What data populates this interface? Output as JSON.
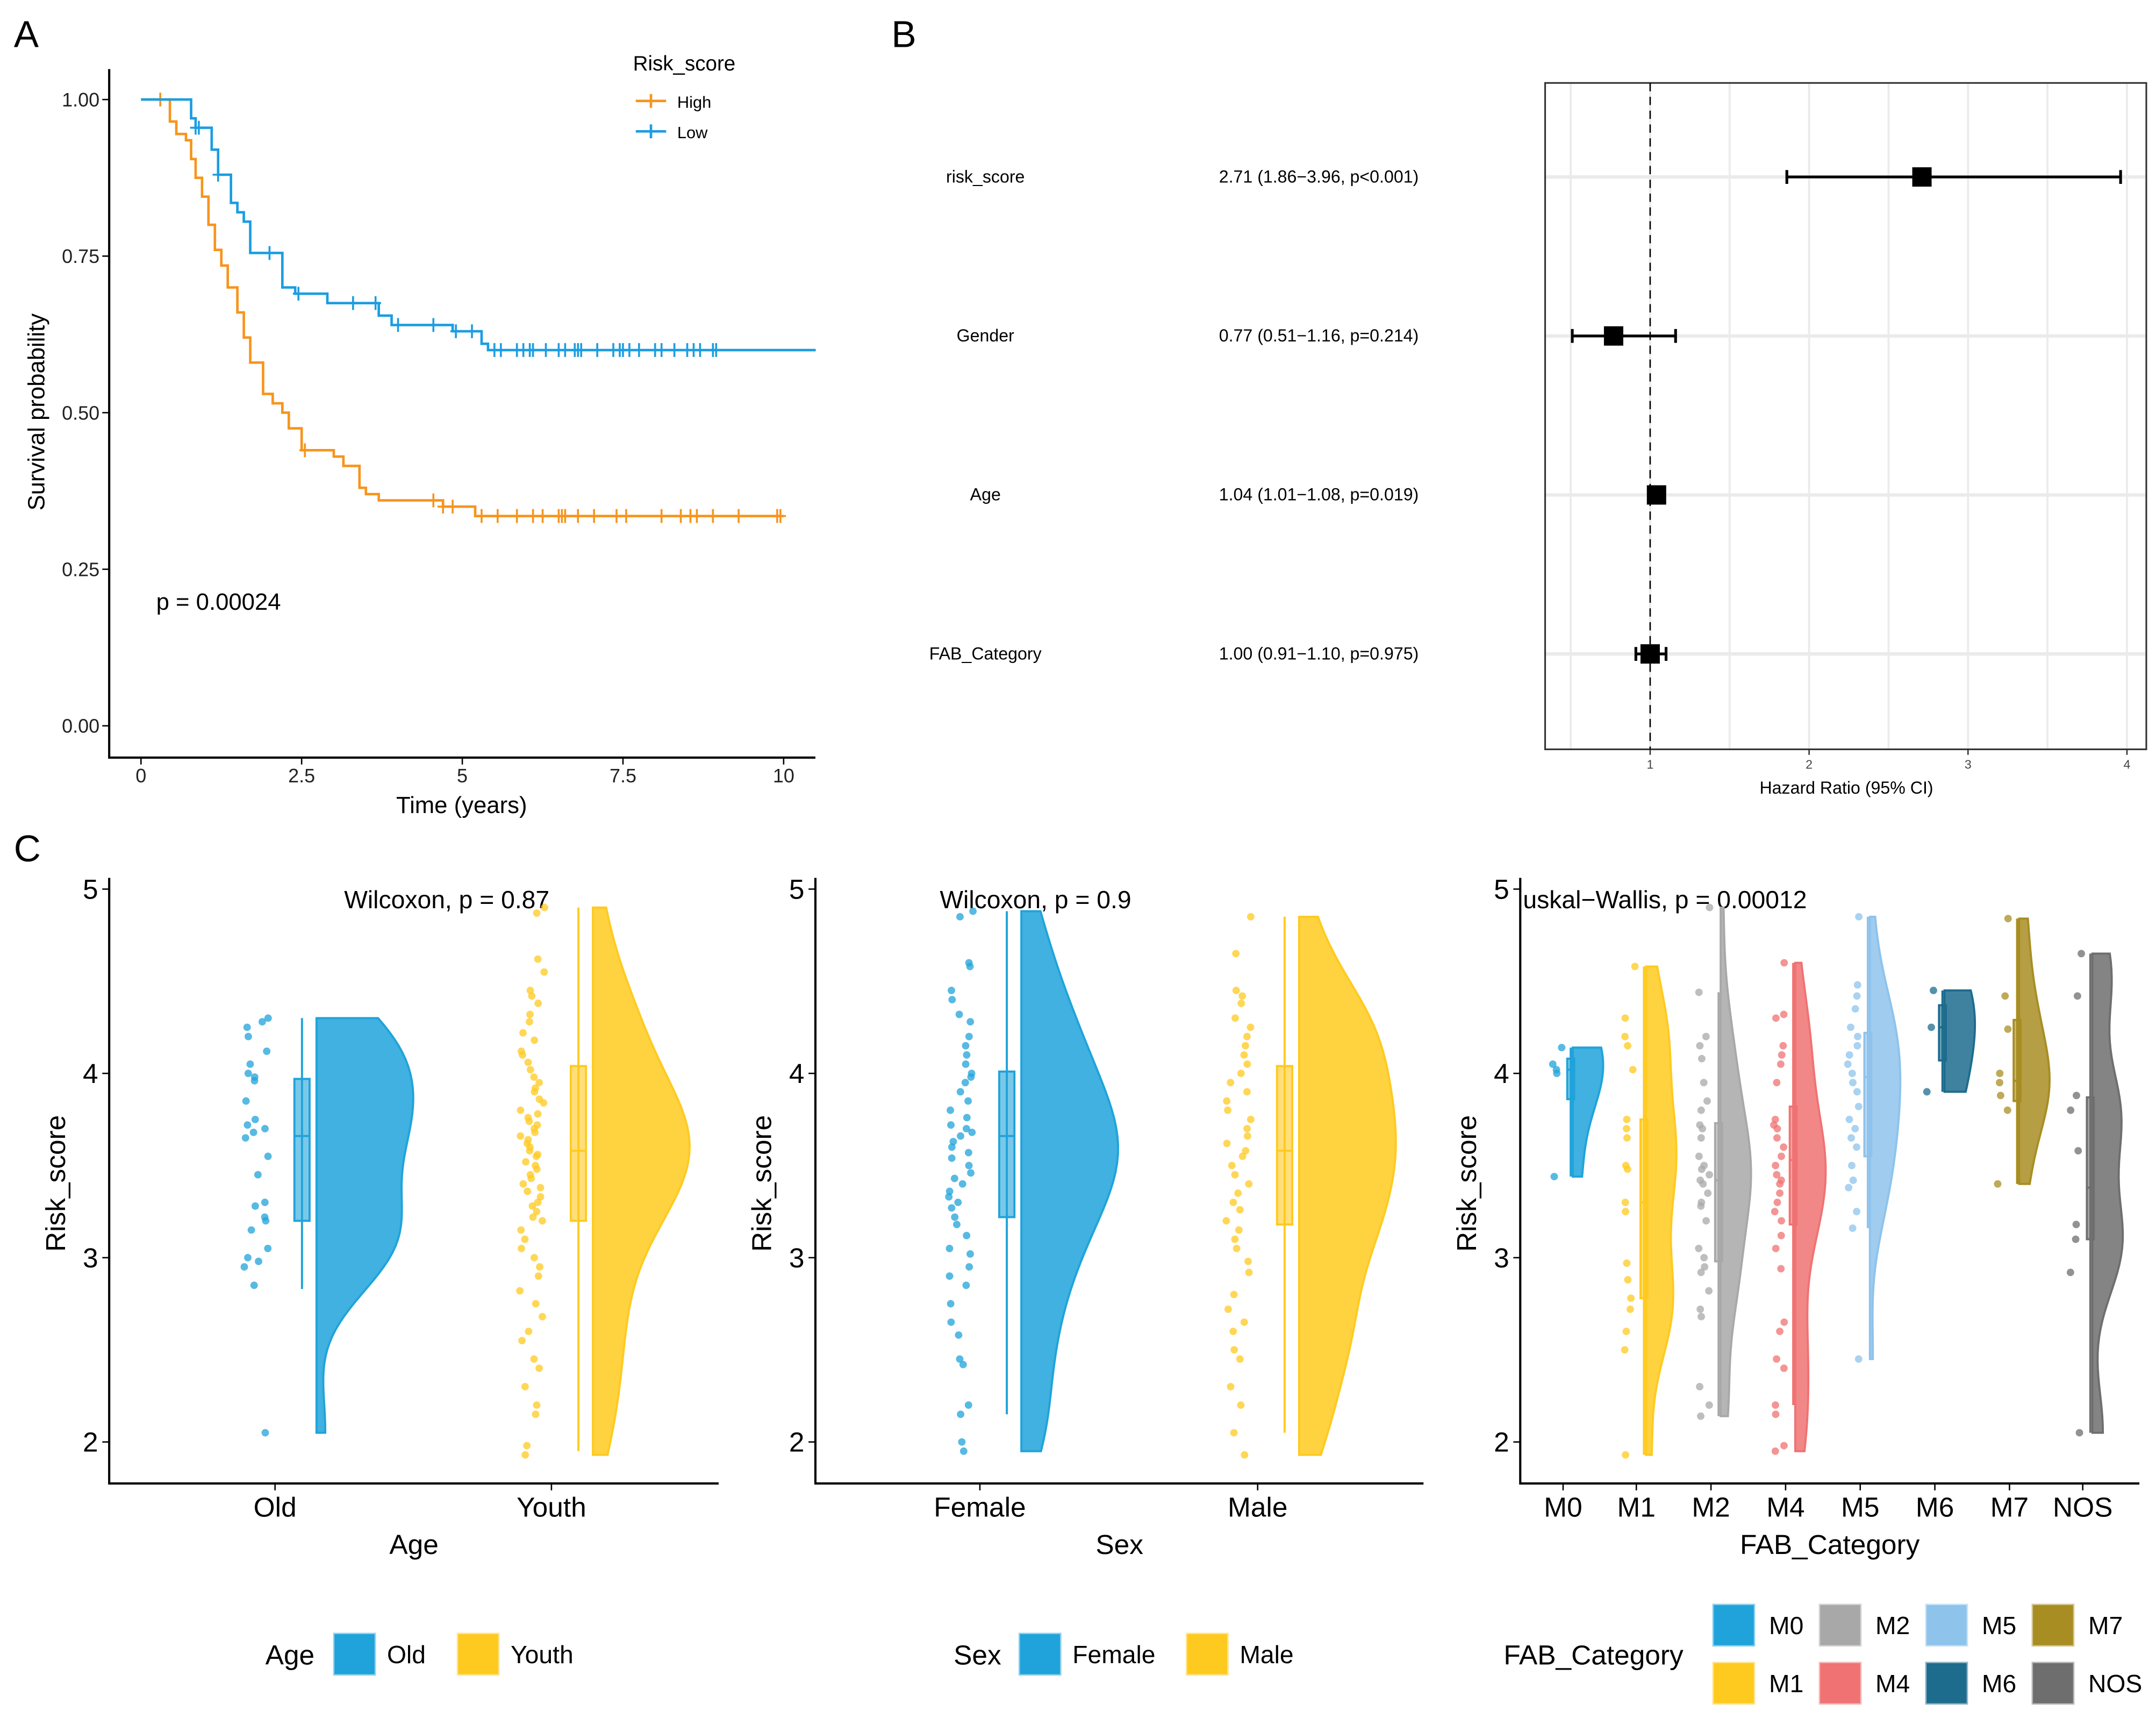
{
  "panel_labels": [
    "A",
    "B",
    "C"
  ],
  "chart_data": [
    {
      "type": "line",
      "subtype": "kaplan-meier",
      "xlabel": "Time (years)",
      "ylabel": "Survival probability",
      "xticks": [
        "0",
        "2.5",
        "5",
        "7.5",
        "10"
      ],
      "yticks": [
        "0.00",
        "0.25",
        "0.50",
        "0.75",
        "1.00"
      ],
      "xlim": [
        -0.5,
        10.5
      ],
      "ylim": [
        -0.05,
        1.05
      ],
      "annotation": "p = 0.00024",
      "legend": {
        "title": "Risk_score",
        "position": "top-right"
      },
      "series": [
        {
          "name": "High",
          "color": "#F7941D",
          "steps": [
            [
              0,
              1.0
            ],
            [
              0.45,
              0.965
            ],
            [
              0.55,
              0.945
            ],
            [
              0.7,
              0.935
            ],
            [
              0.78,
              0.905
            ],
            [
              0.85,
              0.875
            ],
            [
              0.95,
              0.845
            ],
            [
              1.05,
              0.8
            ],
            [
              1.15,
              0.76
            ],
            [
              1.25,
              0.735
            ],
            [
              1.35,
              0.7
            ],
            [
              1.5,
              0.66
            ],
            [
              1.6,
              0.62
            ],
            [
              1.7,
              0.58
            ],
            [
              1.9,
              0.53
            ],
            [
              2.05,
              0.515
            ],
            [
              2.2,
              0.5
            ],
            [
              2.3,
              0.475
            ],
            [
              2.5,
              0.44
            ],
            [
              3.0,
              0.43
            ],
            [
              3.15,
              0.415
            ],
            [
              3.4,
              0.38
            ],
            [
              3.5,
              0.37
            ],
            [
              3.7,
              0.36
            ],
            [
              4.7,
              0.35
            ],
            [
              5.2,
              0.335
            ]
          ],
          "end": 10.0,
          "censored": [
            0.3,
            2.55,
            4.55,
            4.7,
            4.85,
            5.3,
            5.55,
            5.85,
            6.1,
            6.25,
            6.5,
            6.55,
            6.6,
            6.8,
            7.05,
            7.4,
            7.55,
            8.1,
            8.4,
            8.55,
            8.65,
            8.9,
            9.3,
            9.9,
            9.95
          ]
        },
        {
          "name": "Low",
          "color": "#1B9DE2",
          "steps": [
            [
              0,
              1.0
            ],
            [
              0.78,
              0.97
            ],
            [
              0.85,
              0.955
            ],
            [
              1.1,
              0.92
            ],
            [
              1.2,
              0.88
            ],
            [
              1.4,
              0.835
            ],
            [
              1.5,
              0.82
            ],
            [
              1.6,
              0.805
            ],
            [
              1.7,
              0.755
            ],
            [
              2.2,
              0.7
            ],
            [
              2.4,
              0.69
            ],
            [
              2.9,
              0.675
            ],
            [
              3.7,
              0.655
            ],
            [
              3.9,
              0.64
            ],
            [
              4.85,
              0.63
            ],
            [
              5.3,
              0.61
            ],
            [
              5.4,
              0.6
            ]
          ],
          "end": 10.5,
          "censored": [
            0.85,
            0.9,
            1.2,
            2.0,
            2.45,
            3.3,
            3.65,
            4.0,
            4.55,
            4.9,
            5.15,
            5.5,
            5.6,
            5.85,
            5.95,
            6.05,
            6.1,
            6.3,
            6.5,
            6.6,
            6.75,
            6.8,
            6.85,
            7.1,
            7.35,
            7.45,
            7.5,
            7.6,
            7.75,
            8.0,
            8.1,
            8.3,
            8.5,
            8.6,
            8.7,
            8.9,
            8.95
          ]
        }
      ]
    },
    {
      "type": "forest",
      "xlabel": "Hazard Ratio (95% CI)",
      "xticks": [
        "1",
        "2",
        "3",
        "4"
      ],
      "xlim": [
        0.34,
        4.07
      ],
      "reference_line": 1,
      "rows": [
        {
          "label": "risk_score",
          "text": "2.71 (1.86−3.96, p<0.001)",
          "hr": 2.71,
          "lo": 1.86,
          "hi": 3.96
        },
        {
          "label": "Gender",
          "text": "0.77 (0.51−1.16, p=0.214)",
          "hr": 0.77,
          "lo": 0.51,
          "hi": 1.16
        },
        {
          "label": "Age",
          "text": "1.04 (1.01−1.08, p=0.019)",
          "hr": 1.04,
          "lo": 1.01,
          "hi": 1.08
        },
        {
          "label": "FAB_Category",
          "text": "1.00 (0.91−1.10, p=0.975)",
          "hr": 1.0,
          "lo": 0.91,
          "hi": 1.1
        }
      ]
    },
    {
      "type": "raincloud",
      "xlabel": "Age",
      "ylabel": "Risk_score",
      "yticks": [
        "2",
        "3",
        "4",
        "5"
      ],
      "ylim": [
        1.78,
        5.05
      ],
      "annotation": "Wilcoxon, p = 0.87",
      "legend": {
        "title": "Age",
        "position": "bottom"
      },
      "groups": [
        {
          "name": "Old",
          "color": "#1FA3DA",
          "box": [
            2.83,
            3.2,
            3.66,
            3.97,
            4.3
          ],
          "points": [
            4.3,
            4.28,
            4.25,
            4.2,
            4.12,
            4.05,
            4.0,
            3.98,
            3.96,
            3.85,
            3.75,
            3.72,
            3.7,
            3.68,
            3.65,
            3.55,
            3.45,
            3.3,
            3.28,
            3.22,
            3.2,
            3.15,
            3.05,
            3.0,
            2.98,
            2.95,
            2.85,
            2.05
          ]
        },
        {
          "name": "Youth",
          "color": "#FFCA1F",
          "box": [
            1.95,
            3.2,
            3.58,
            4.04,
            4.9
          ],
          "points": [
            4.9,
            4.87,
            4.62,
            4.55,
            4.45,
            4.42,
            4.38,
            4.32,
            4.28,
            4.22,
            4.18,
            4.12,
            4.1,
            4.06,
            4.02,
            3.98,
            3.95,
            3.92,
            3.9,
            3.86,
            3.84,
            3.8,
            3.78,
            3.76,
            3.74,
            3.72,
            3.7,
            3.68,
            3.66,
            3.64,
            3.62,
            3.6,
            3.58,
            3.56,
            3.55,
            3.52,
            3.5,
            3.48,
            3.45,
            3.43,
            3.4,
            3.38,
            3.36,
            3.33,
            3.3,
            3.28,
            3.25,
            3.22,
            3.2,
            3.15,
            3.1,
            3.05,
            3.0,
            2.95,
            2.9,
            2.82,
            2.75,
            2.68,
            2.6,
            2.55,
            2.45,
            2.4,
            2.3,
            2.2,
            2.15,
            1.98,
            1.93
          ]
        }
      ]
    },
    {
      "type": "raincloud",
      "xlabel": "Sex",
      "ylabel": "Risk_score",
      "yticks": [
        "2",
        "3",
        "4",
        "5"
      ],
      "ylim": [
        1.78,
        5.05
      ],
      "annotation": "Wilcoxon, p = 0.9",
      "legend": {
        "title": "Sex",
        "position": "bottom"
      },
      "groups": [
        {
          "name": "Female",
          "color": "#1FA3DA",
          "box": [
            2.15,
            3.22,
            3.66,
            4.01,
            4.88
          ],
          "points": [
            4.88,
            4.85,
            4.6,
            4.58,
            4.45,
            4.4,
            4.32,
            4.28,
            4.2,
            4.15,
            4.1,
            4.05,
            4.0,
            3.98,
            3.95,
            3.9,
            3.85,
            3.8,
            3.76,
            3.72,
            3.7,
            3.68,
            3.66,
            3.63,
            3.6,
            3.57,
            3.54,
            3.5,
            3.46,
            3.43,
            3.4,
            3.36,
            3.33,
            3.3,
            3.27,
            3.22,
            3.18,
            3.12,
            3.05,
            3.02,
            2.95,
            2.9,
            2.85,
            2.75,
            2.65,
            2.58,
            2.45,
            2.42,
            2.2,
            2.15,
            2.0,
            1.95
          ]
        },
        {
          "name": "Male",
          "color": "#FFCA1F",
          "box": [
            2.05,
            3.18,
            3.58,
            4.04,
            4.85
          ],
          "points": [
            4.85,
            4.65,
            4.45,
            4.42,
            4.38,
            4.3,
            4.25,
            4.2,
            4.15,
            4.1,
            4.05,
            4.0,
            3.95,
            3.9,
            3.85,
            3.8,
            3.75,
            3.7,
            3.66,
            3.62,
            3.58,
            3.55,
            3.5,
            3.45,
            3.4,
            3.35,
            3.3,
            3.26,
            3.2,
            3.15,
            3.1,
            3.05,
            2.98,
            2.92,
            2.8,
            2.72,
            2.65,
            2.6,
            2.5,
            2.45,
            2.3,
            2.2,
            2.05,
            1.93
          ]
        }
      ]
    },
    {
      "type": "raincloud",
      "xlabel": "FAB_Category",
      "ylabel": "Risk_score",
      "yticks": [
        "2",
        "3",
        "4",
        "5"
      ],
      "ylim": [
        1.78,
        5.05
      ],
      "annotation": "uskal−Wallis, p = 0.00012",
      "legend": {
        "title": "FAB_Category",
        "position": "bottom"
      },
      "groups": [
        {
          "name": "M0",
          "color": "#1FA3DA",
          "box": [
            3.44,
            3.86,
            4.02,
            4.08,
            4.14
          ],
          "points": [
            4.14,
            4.05,
            4.02,
            4.0,
            3.44
          ]
        },
        {
          "name": "M1",
          "color": "#FFCA1F",
          "box": [
            1.93,
            2.78,
            3.3,
            3.75,
            4.58
          ],
          "points": [
            4.58,
            4.3,
            4.2,
            4.15,
            4.02,
            3.75,
            3.7,
            3.65,
            3.5,
            3.48,
            3.3,
            3.25,
            2.97,
            2.88,
            2.78,
            2.72,
            2.6,
            2.5,
            1.93
          ]
        },
        {
          "name": "M2",
          "color": "#A8A8A8",
          "box": [
            2.14,
            2.98,
            3.42,
            3.73,
            4.44
          ],
          "points": [
            4.9,
            4.44,
            4.2,
            4.15,
            4.08,
            3.95,
            3.85,
            3.8,
            3.72,
            3.7,
            3.65,
            3.55,
            3.5,
            3.48,
            3.45,
            3.42,
            3.4,
            3.35,
            3.3,
            3.28,
            3.2,
            3.05,
            3.0,
            2.95,
            2.92,
            2.82,
            2.72,
            2.68,
            2.3,
            2.2,
            2.14
          ]
        },
        {
          "name": "M4",
          "color": "#F07272",
          "box": [
            2.2,
            3.18,
            3.53,
            3.82,
            4.6
          ],
          "points": [
            4.6,
            4.32,
            4.3,
            4.15,
            4.1,
            4.05,
            3.95,
            3.75,
            3.72,
            3.7,
            3.65,
            3.6,
            3.55,
            3.5,
            3.45,
            3.42,
            3.4,
            3.35,
            3.3,
            3.25,
            3.2,
            3.12,
            3.05,
            2.94,
            2.65,
            2.6,
            2.45,
            2.4,
            2.2,
            2.15,
            1.98,
            1.95
          ]
        },
        {
          "name": "M5",
          "color": "#8EC3EC",
          "box": [
            3.16,
            3.55,
            3.98,
            4.22,
            4.85
          ],
          "points": [
            4.85,
            4.48,
            4.42,
            4.35,
            4.25,
            4.2,
            4.15,
            4.1,
            4.05,
            4.0,
            3.95,
            3.9,
            3.82,
            3.75,
            3.7,
            3.65,
            3.6,
            3.5,
            3.42,
            3.38,
            3.25,
            3.16,
            2.45
          ]
        },
        {
          "name": "M6",
          "color": "#1D6C8E",
          "box": [
            3.9,
            4.07,
            4.25,
            4.37,
            4.45
          ],
          "points": [
            4.45,
            4.25,
            3.9
          ]
        },
        {
          "name": "M7",
          "color": "#A88D22",
          "box": [
            3.4,
            3.85,
            3.96,
            4.29,
            4.84
          ],
          "points": [
            4.84,
            4.42,
            4.24,
            4.0,
            3.95,
            3.88,
            3.8,
            3.4
          ]
        },
        {
          "name": "NOS",
          "color": "#6E6E6E",
          "box": [
            2.05,
            3.1,
            3.38,
            3.87,
            4.65
          ],
          "points": [
            4.65,
            4.42,
            3.88,
            3.8,
            3.58,
            3.18,
            3.1,
            2.92,
            2.05
          ]
        }
      ]
    }
  ]
}
